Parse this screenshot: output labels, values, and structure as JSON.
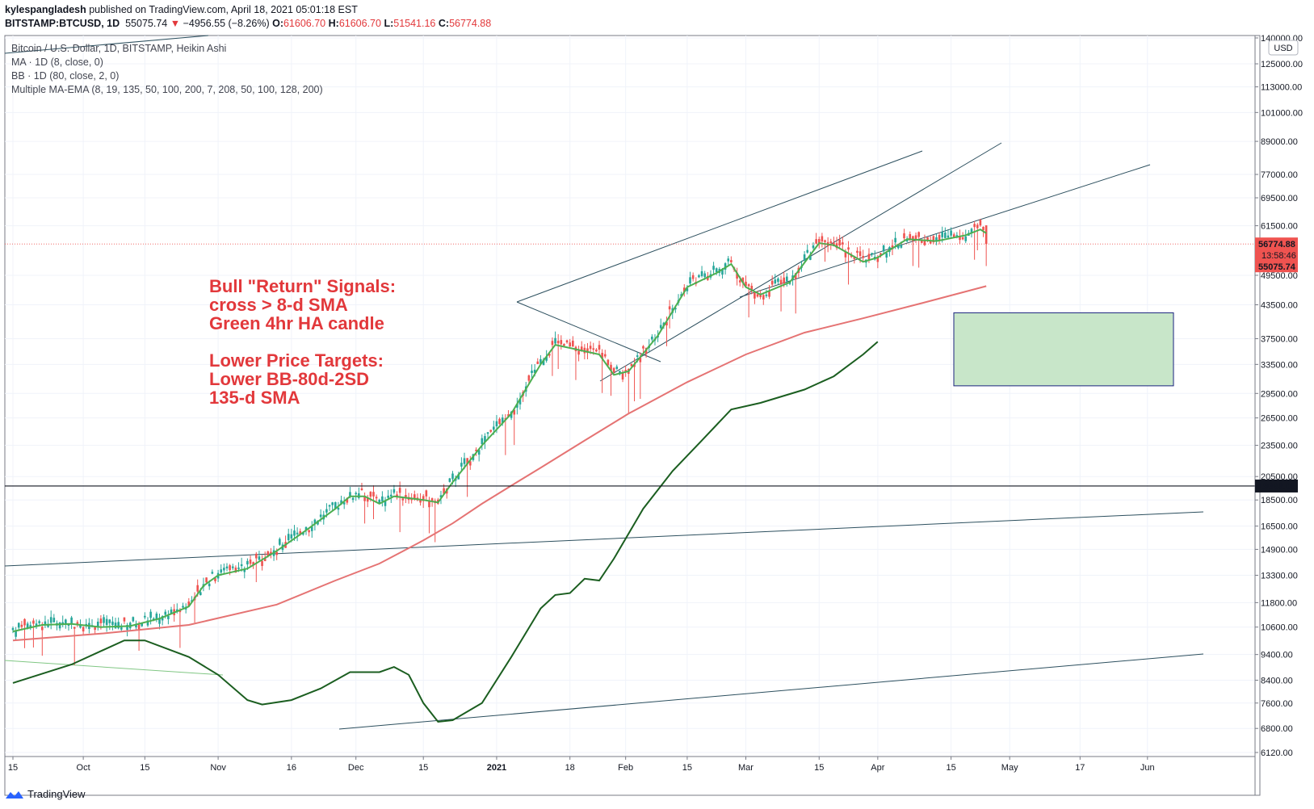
{
  "header": {
    "publisher": "kylespangladesh",
    "published_text": "published on TradingView.com, April 18, 2021 05:01:18 EST",
    "symbol": "BITSTAMP:BTCUSD, 1D",
    "last": "55075.74",
    "change_arrow": "▼",
    "change": "−4956.55 (−8.26%)",
    "o_label": "O:",
    "o": "61606.70",
    "h_label": "H:",
    "h": "61606.70",
    "l_label": "L:",
    "l": "51541.16",
    "c_label": "C:",
    "c": "56774.88"
  },
  "legend": {
    "title": "Bitcoin / U.S. Dollar, 1D, BITSTAMP, Heikin Ashi",
    "ma": "MA · 1D (8, close, 0)",
    "bb": "BB · 1D (80, close, 2, 0)",
    "mma": "Multiple MA-EMA (8, 19, 135, 50, 100, 200, 7, 208, 50, 100, 128, 200)"
  },
  "footer": {
    "brand": "TradingView"
  },
  "colors": {
    "up": "#26a69a",
    "down": "#ef5350",
    "ma8": "#4caf50",
    "sma135": "#e57373",
    "bb_lower": "#1b5e20",
    "trend": "#2c4f5e",
    "box_fill": "#c8e6c9",
    "box_border": "#1a237e",
    "annotation": "#e2383b"
  },
  "annotation_lines": [
    "Bull \"Return\" Signals:",
    "cross > 8-d SMA",
    "Green 4hr HA candle",
    "",
    "Lower Price Targets:",
    "Lower BB-80d-2SD",
    "135-d SMA"
  ],
  "price_badges": {
    "close": "56774.88",
    "countdown": "13:58:46",
    "last": "55075.74",
    "level": "19666.00"
  },
  "chart_data": {
    "type": "candlestick",
    "y_scale": "log",
    "currency": "USD",
    "y_ticks": [
      "140000.00",
      "125000.00",
      "113000.00",
      "101000.00",
      "89000.00",
      "77000.00",
      "69500.00",
      "61500.00",
      "49500.00",
      "43500.00",
      "37500.00",
      "33500.00",
      "29500.00",
      "26500.00",
      "23500.00",
      "20500.00",
      "18500.00",
      "16500.00",
      "14900.00",
      "13300.00",
      "11800.00",
      "10600.00",
      "9400.00",
      "8400.00",
      "7600.00",
      "6800.00",
      "6120.00"
    ],
    "x_ticks": [
      "15",
      "Oct",
      "15",
      "Nov",
      "16",
      "Dec",
      "15",
      "2021",
      "18",
      "Feb",
      "15",
      "Mar",
      "15",
      "Apr",
      "15",
      "May",
      "17",
      "Jun"
    ],
    "horizontal_level": 19666,
    "ma8": [
      [
        0,
        10400
      ],
      [
        10,
        10700
      ],
      [
        20,
        10750
      ],
      [
        30,
        10600
      ],
      [
        40,
        10650
      ],
      [
        50,
        11000
      ],
      [
        60,
        11600
      ],
      [
        65,
        12700
      ],
      [
        70,
        13300
      ],
      [
        80,
        13700
      ],
      [
        90,
        14800
      ],
      [
        100,
        16200
      ],
      [
        110,
        17800
      ],
      [
        115,
        18800
      ],
      [
        120,
        18800
      ],
      [
        125,
        18200
      ],
      [
        130,
        18800
      ],
      [
        140,
        18500
      ],
      [
        145,
        18300
      ],
      [
        150,
        20000
      ],
      [
        160,
        23500
      ],
      [
        170,
        27000
      ],
      [
        180,
        33500
      ],
      [
        185,
        36500
      ],
      [
        190,
        36000
      ],
      [
        200,
        35000
      ],
      [
        205,
        32000
      ],
      [
        210,
        32500
      ],
      [
        220,
        38000
      ],
      [
        230,
        47000
      ],
      [
        240,
        50000
      ],
      [
        245,
        52000
      ],
      [
        250,
        47000
      ],
      [
        255,
        45500
      ],
      [
        265,
        48000
      ],
      [
        275,
        57000
      ],
      [
        280,
        56500
      ],
      [
        285,
        54500
      ],
      [
        290,
        52500
      ],
      [
        295,
        53500
      ],
      [
        305,
        58000
      ],
      [
        315,
        57500
      ],
      [
        325,
        59000
      ],
      [
        330,
        60500
      ],
      [
        332,
        59500
      ]
    ],
    "sma135": [
      [
        0,
        10000
      ],
      [
        30,
        10300
      ],
      [
        60,
        10700
      ],
      [
        90,
        11700
      ],
      [
        110,
        13000
      ],
      [
        125,
        14000
      ],
      [
        140,
        15500
      ],
      [
        150,
        16700
      ],
      [
        160,
        18200
      ],
      [
        170,
        19700
      ],
      [
        180,
        21300
      ],
      [
        195,
        24000
      ],
      [
        210,
        27000
      ],
      [
        230,
        31000
      ],
      [
        250,
        35000
      ],
      [
        270,
        38500
      ],
      [
        290,
        41000
      ],
      [
        310,
        43800
      ],
      [
        332,
        47200
      ]
    ],
    "bb_lower": [
      [
        0,
        8300
      ],
      [
        20,
        9000
      ],
      [
        38,
        10000
      ],
      [
        45,
        10000
      ],
      [
        60,
        9300
      ],
      [
        70,
        8600
      ],
      [
        80,
        7700
      ],
      [
        85,
        7550
      ],
      [
        95,
        7700
      ],
      [
        105,
        8100
      ],
      [
        115,
        8700
      ],
      [
        125,
        8700
      ],
      [
        130,
        8900
      ],
      [
        135,
        8600
      ],
      [
        140,
        7600
      ],
      [
        145,
        7000
      ],
      [
        150,
        7050
      ],
      [
        160,
        7600
      ],
      [
        170,
        9300
      ],
      [
        180,
        11500
      ],
      [
        185,
        12200
      ],
      [
        190,
        12300
      ],
      [
        195,
        13100
      ],
      [
        200,
        13000
      ],
      [
        205,
        14300
      ],
      [
        215,
        17800
      ],
      [
        225,
        21000
      ],
      [
        235,
        24000
      ],
      [
        245,
        27500
      ],
      [
        255,
        28300
      ],
      [
        270,
        30000
      ],
      [
        280,
        31800
      ],
      [
        290,
        35000
      ],
      [
        295,
        37000
      ]
    ],
    "last_candle": {
      "open": 61606.7,
      "high": 61606.7,
      "low": 51541.16,
      "close": 56774.88
    }
  }
}
